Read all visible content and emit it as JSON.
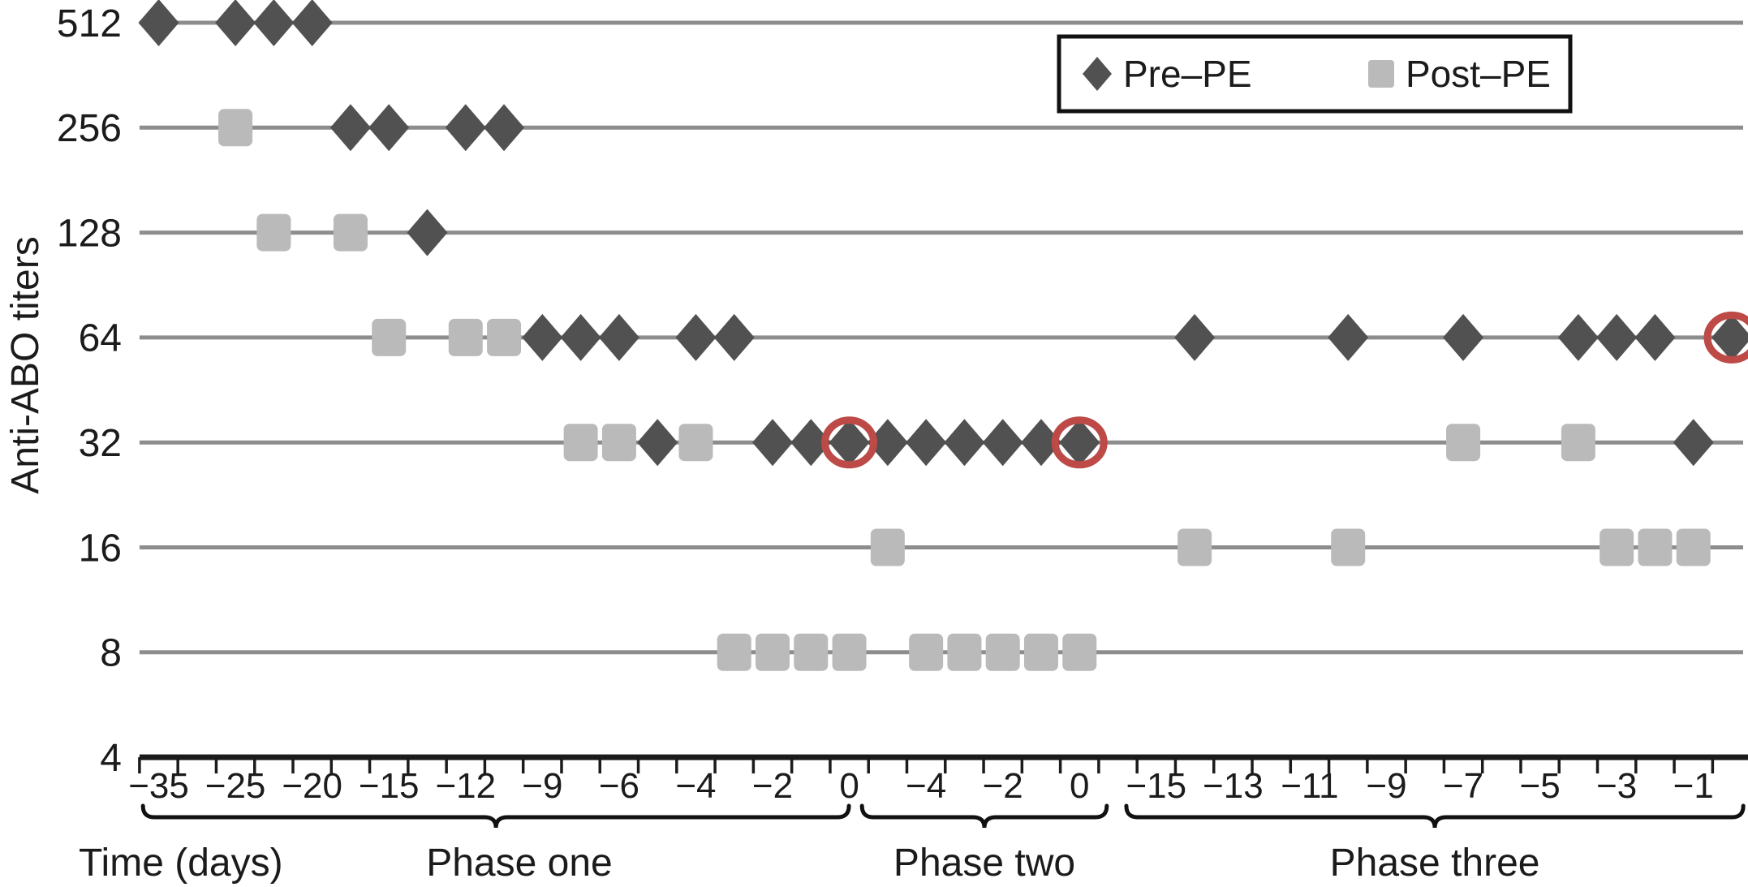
{
  "figure": {
    "y_axis_title": "Anti-ABO titers",
    "x_axis_title": "Time (days)",
    "legend": {
      "pre_label": "Pre–PE",
      "post_label": "Post–PE"
    },
    "colors": {
      "pre_marker": "#515151",
      "post_marker": "#bababa",
      "row_line": "#8d8d8d",
      "axis": "#1b1b1b",
      "highlight_ring": "#bd4a47",
      "legend_border": "#111111"
    }
  },
  "chart_data": {
    "type": "scatter",
    "title": "",
    "xlabel": "Time (days)",
    "ylabel": "Anti-ABO titers",
    "y_axis": {
      "categories": [
        512,
        256,
        128,
        64,
        32,
        16,
        8,
        4
      ],
      "scale": "categorical (doubling titer steps, 4 = baseline axis)"
    },
    "x_axis": {
      "slots": 42,
      "note": "categorical time axis; labels mark every second slot; days restart each phase",
      "tick_labels": [
        {
          "slot": 0,
          "label": "−35"
        },
        {
          "slot": 2,
          "label": "−25"
        },
        {
          "slot": 4,
          "label": "−20"
        },
        {
          "slot": 6,
          "label": "−15"
        },
        {
          "slot": 8,
          "label": "−12"
        },
        {
          "slot": 10,
          "label": "−9"
        },
        {
          "slot": 12,
          "label": "−6"
        },
        {
          "slot": 14,
          "label": "−4"
        },
        {
          "slot": 16,
          "label": "−2"
        },
        {
          "slot": 18,
          "label": "0"
        },
        {
          "slot": 20,
          "label": "−4"
        },
        {
          "slot": 22,
          "label": "−2"
        },
        {
          "slot": 24,
          "label": "0"
        },
        {
          "slot": 26,
          "label": "−15"
        },
        {
          "slot": 28,
          "label": "−13"
        },
        {
          "slot": 30,
          "label": "−11"
        },
        {
          "slot": 32,
          "label": "−9"
        },
        {
          "slot": 34,
          "label": "−7"
        },
        {
          "slot": 36,
          "label": "−5"
        },
        {
          "slot": 38,
          "label": "−3"
        },
        {
          "slot": 40,
          "label": "−1"
        }
      ]
    },
    "phases": [
      {
        "label": "Phase one",
        "brace_start_slot": -0.41,
        "brace_end_slot": 17.99,
        "label_slot": 9.4
      },
      {
        "label": "Phase two",
        "brace_start_slot": 18.33,
        "brace_end_slot": 24.71,
        "label_slot": 21.52
      },
      {
        "label": "Phase three",
        "brace_start_slot": 25.22,
        "brace_end_slot": 41.3,
        "label_slot": 33.26
      }
    ],
    "legend_position": "top-right",
    "grid": "horizontal row lines only",
    "series": [
      {
        "name": "Pre–PE",
        "marker": "diamond",
        "color": "#515151",
        "points": [
          {
            "slot": 0,
            "titer": 512
          },
          {
            "slot": 2,
            "titer": 512
          },
          {
            "slot": 3,
            "titer": 512
          },
          {
            "slot": 4,
            "titer": 512
          },
          {
            "slot": 5,
            "titer": 256
          },
          {
            "slot": 6,
            "titer": 256
          },
          {
            "slot": 7,
            "titer": 128
          },
          {
            "slot": 8,
            "titer": 256
          },
          {
            "slot": 9,
            "titer": 256
          },
          {
            "slot": 10,
            "titer": 64
          },
          {
            "slot": 11,
            "titer": 64
          },
          {
            "slot": 12,
            "titer": 64
          },
          {
            "slot": 13,
            "titer": 32
          },
          {
            "slot": 14,
            "titer": 64
          },
          {
            "slot": 15,
            "titer": 64
          },
          {
            "slot": 16,
            "titer": 32
          },
          {
            "slot": 17,
            "titer": 32
          },
          {
            "slot": 18,
            "titer": 32
          },
          {
            "slot": 19,
            "titer": 32
          },
          {
            "slot": 20,
            "titer": 32
          },
          {
            "slot": 21,
            "titer": 32
          },
          {
            "slot": 22,
            "titer": 32
          },
          {
            "slot": 23,
            "titer": 32
          },
          {
            "slot": 24,
            "titer": 32
          },
          {
            "slot": 27,
            "titer": 64
          },
          {
            "slot": 31,
            "titer": 64
          },
          {
            "slot": 34,
            "titer": 64
          },
          {
            "slot": 37,
            "titer": 64
          },
          {
            "slot": 38,
            "titer": 64
          },
          {
            "slot": 39,
            "titer": 64
          },
          {
            "slot": 40,
            "titer": 32
          },
          {
            "slot": 41,
            "titer": 64
          }
        ]
      },
      {
        "name": "Post–PE",
        "marker": "square",
        "color": "#bababa",
        "points": [
          {
            "slot": 2,
            "titer": 256
          },
          {
            "slot": 3,
            "titer": 128
          },
          {
            "slot": 5,
            "titer": 128
          },
          {
            "slot": 6,
            "titer": 64
          },
          {
            "slot": 8,
            "titer": 64
          },
          {
            "slot": 9,
            "titer": 64
          },
          {
            "slot": 11,
            "titer": 32
          },
          {
            "slot": 12,
            "titer": 32
          },
          {
            "slot": 14,
            "titer": 32
          },
          {
            "slot": 15,
            "titer": 8
          },
          {
            "slot": 16,
            "titer": 8
          },
          {
            "slot": 17,
            "titer": 8
          },
          {
            "slot": 18,
            "titer": 8
          },
          {
            "slot": 19,
            "titer": 16
          },
          {
            "slot": 20,
            "titer": 8
          },
          {
            "slot": 21,
            "titer": 8
          },
          {
            "slot": 22,
            "titer": 8
          },
          {
            "slot": 23,
            "titer": 8
          },
          {
            "slot": 24,
            "titer": 8
          },
          {
            "slot": 27,
            "titer": 16
          },
          {
            "slot": 31,
            "titer": 16
          },
          {
            "slot": 34,
            "titer": 32
          },
          {
            "slot": 37,
            "titer": 32
          },
          {
            "slot": 38,
            "titer": 16
          },
          {
            "slot": 39,
            "titer": 16
          },
          {
            "slot": 40,
            "titer": 16
          }
        ]
      }
    ],
    "highlighted_points": [
      {
        "series": "Pre–PE",
        "slot": 18,
        "titer": 32,
        "mark": "red ring"
      },
      {
        "series": "Pre–PE",
        "slot": 24,
        "titer": 32,
        "mark": "red ring"
      },
      {
        "series": "Pre–PE",
        "slot": 41,
        "titer": 64,
        "mark": "red ring"
      }
    ]
  }
}
